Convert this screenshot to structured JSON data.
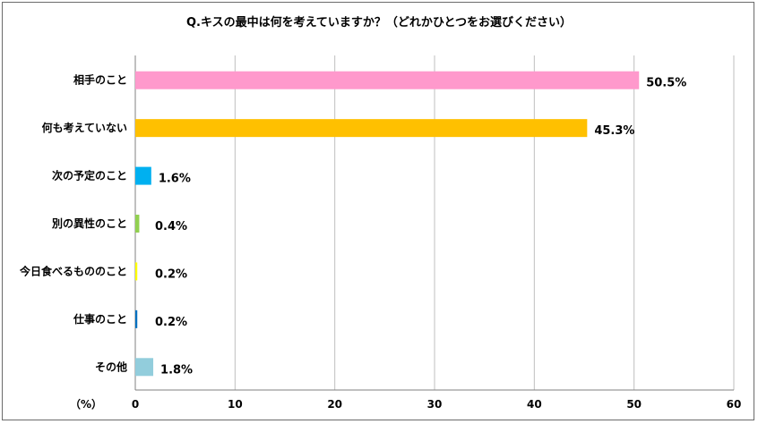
{
  "chart_data": {
    "type": "bar",
    "orientation": "horizontal",
    "title": "Q.キスの最中は何を考えていますか？（どれかひとつをお選びください）",
    "unit_label": "（%）",
    "xlim": [
      0,
      60
    ],
    "x_ticks": [
      0,
      10,
      20,
      30,
      40,
      50,
      60
    ],
    "grid": true,
    "legend": "none",
    "categories": [
      "相手のこと",
      "何も考えていない",
      "次の予定のこと",
      "別の異性のこと",
      "今日食べるもののこと",
      "仕事のこと",
      "その他"
    ],
    "values": [
      50.5,
      45.3,
      1.6,
      0.4,
      0.2,
      0.2,
      1.8
    ],
    "data_labels": [
      "50.5%",
      "45.3%",
      "1.6%",
      "0.4%",
      "0.2%",
      "0.2%",
      "1.8%"
    ],
    "colors": [
      "#ff99cc",
      "#ffc000",
      "#00b0f0",
      "#92d050",
      "#ffff00",
      "#0070c0",
      "#92cddc"
    ]
  }
}
